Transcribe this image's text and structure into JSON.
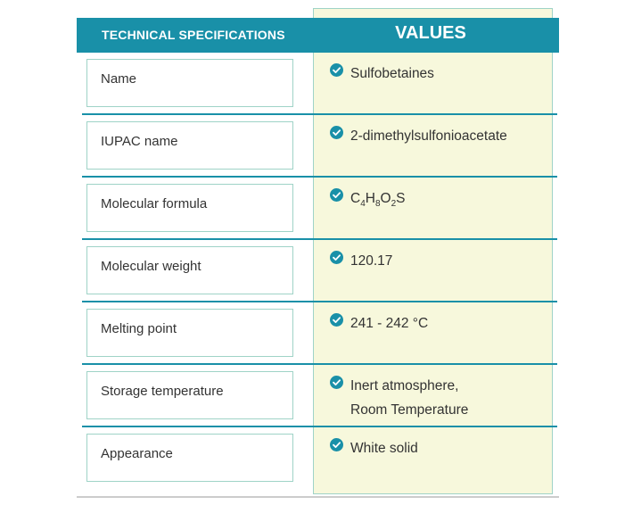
{
  "header": {
    "spec_label": "TECHNICAL SPECIFICATIONS",
    "values_label": "VALUES"
  },
  "rows": [
    {
      "label": "Name",
      "value": "Sulfobetaines"
    },
    {
      "label": "IUPAC name",
      "value": "2-dimethylsulfonioacetate"
    },
    {
      "label": "Molecular formula",
      "formula": {
        "c": "C",
        "c_n": "4",
        "h": "H",
        "h_n": "8",
        "o": "O",
        "o_n": "2",
        "s": "S"
      }
    },
    {
      "label": "Molecular weight",
      "value": "120.17"
    },
    {
      "label": "Melting point",
      "value": "241 - 242 °C"
    },
    {
      "label": "Storage temperature",
      "value_line1": "Inert atmosphere,",
      "value_line2": "Room Temperature"
    },
    {
      "label": "Appearance",
      "value": "White solid"
    }
  ],
  "colors": {
    "accent": "#1990a8",
    "values_bg": "#f7f8dc",
    "box_border": "#9fd3c7"
  },
  "icons": {
    "check": "check-circle-icon"
  }
}
